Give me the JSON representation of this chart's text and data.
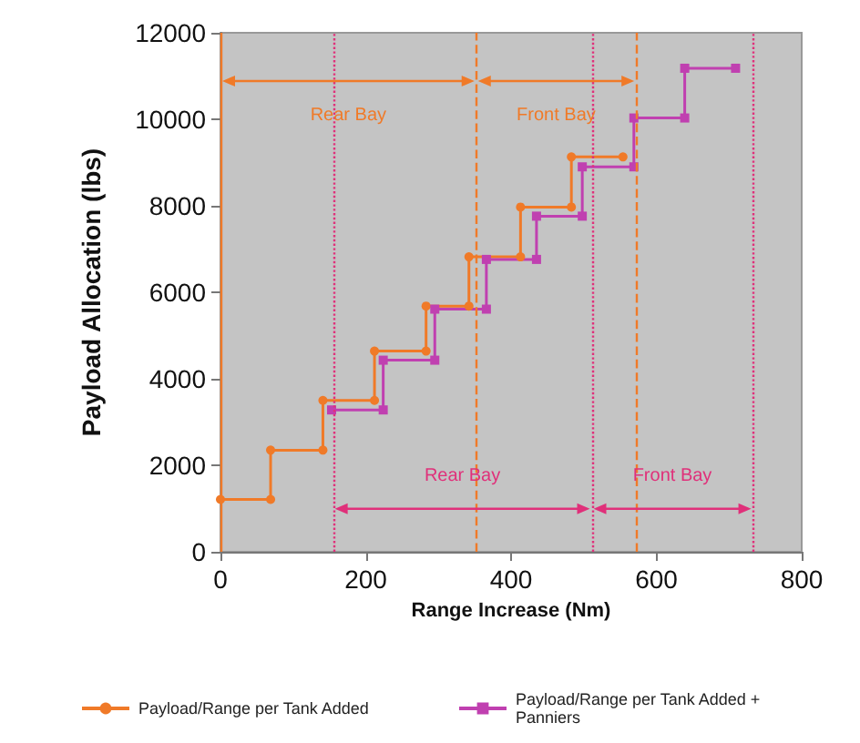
{
  "chart_data": {
    "type": "line",
    "xlabel": "Range Increase (Nm)",
    "ylabel": "Payload Allocation (lbs)",
    "xlim": [
      0,
      800
    ],
    "xticks": [
      0,
      200,
      400,
      600,
      800
    ],
    "ylim": [
      0,
      12000
    ],
    "yticks": [
      0,
      2000,
      4000,
      6000,
      8000,
      10000,
      12000
    ],
    "grid": false,
    "legend": "bottom",
    "marker": "circle",
    "line_style": "solid",
    "series": [
      {
        "name": "Payload/Range per Tank Added",
        "color": "#f07a28",
        "x": [
          0,
          69,
          69,
          141,
          141,
          212,
          212,
          283,
          283,
          342,
          342,
          413,
          413,
          483,
          483,
          554
        ],
        "values": [
          1210,
          1210,
          2350,
          2350,
          3500,
          3500,
          4640,
          4640,
          5680,
          5680,
          6820,
          6820,
          7970,
          7970,
          9130,
          9130
        ]
      },
      {
        "name": "Payload/Range per Tank Added + Panniers",
        "color": "#c040b0",
        "marker": "square",
        "x": [
          153,
          224,
          224,
          295,
          295,
          366,
          366,
          435,
          435,
          498,
          498,
          569,
          569,
          639,
          639,
          709
        ],
        "values": [
          3280,
          3280,
          4430,
          4430,
          5610,
          5610,
          6760,
          6760,
          7760,
          7760,
          8900,
          8900,
          10030,
          10030,
          11180,
          11180
        ]
      }
    ],
    "ref_lines": [
      {
        "axis": "x",
        "value": 0,
        "color": "#f07a28",
        "line_style": "solid"
      },
      {
        "axis": "x",
        "value": 352,
        "color": "#f07a28",
        "line_style": "dashed"
      },
      {
        "axis": "x",
        "value": 572,
        "color": "#f07a28",
        "line_style": "dashed"
      },
      {
        "axis": "x",
        "value": 155,
        "color": "#e0307a",
        "line_style": "dotted"
      },
      {
        "axis": "x",
        "value": 511,
        "color": "#e0307a",
        "line_style": "dotted"
      },
      {
        "axis": "x",
        "value": 733,
        "color": "#e0307a",
        "line_style": "dotted"
      }
    ],
    "annotations": [
      "Rear Bay",
      "Front Bay",
      "Rear Bay",
      "Front Bay"
    ]
  }
}
